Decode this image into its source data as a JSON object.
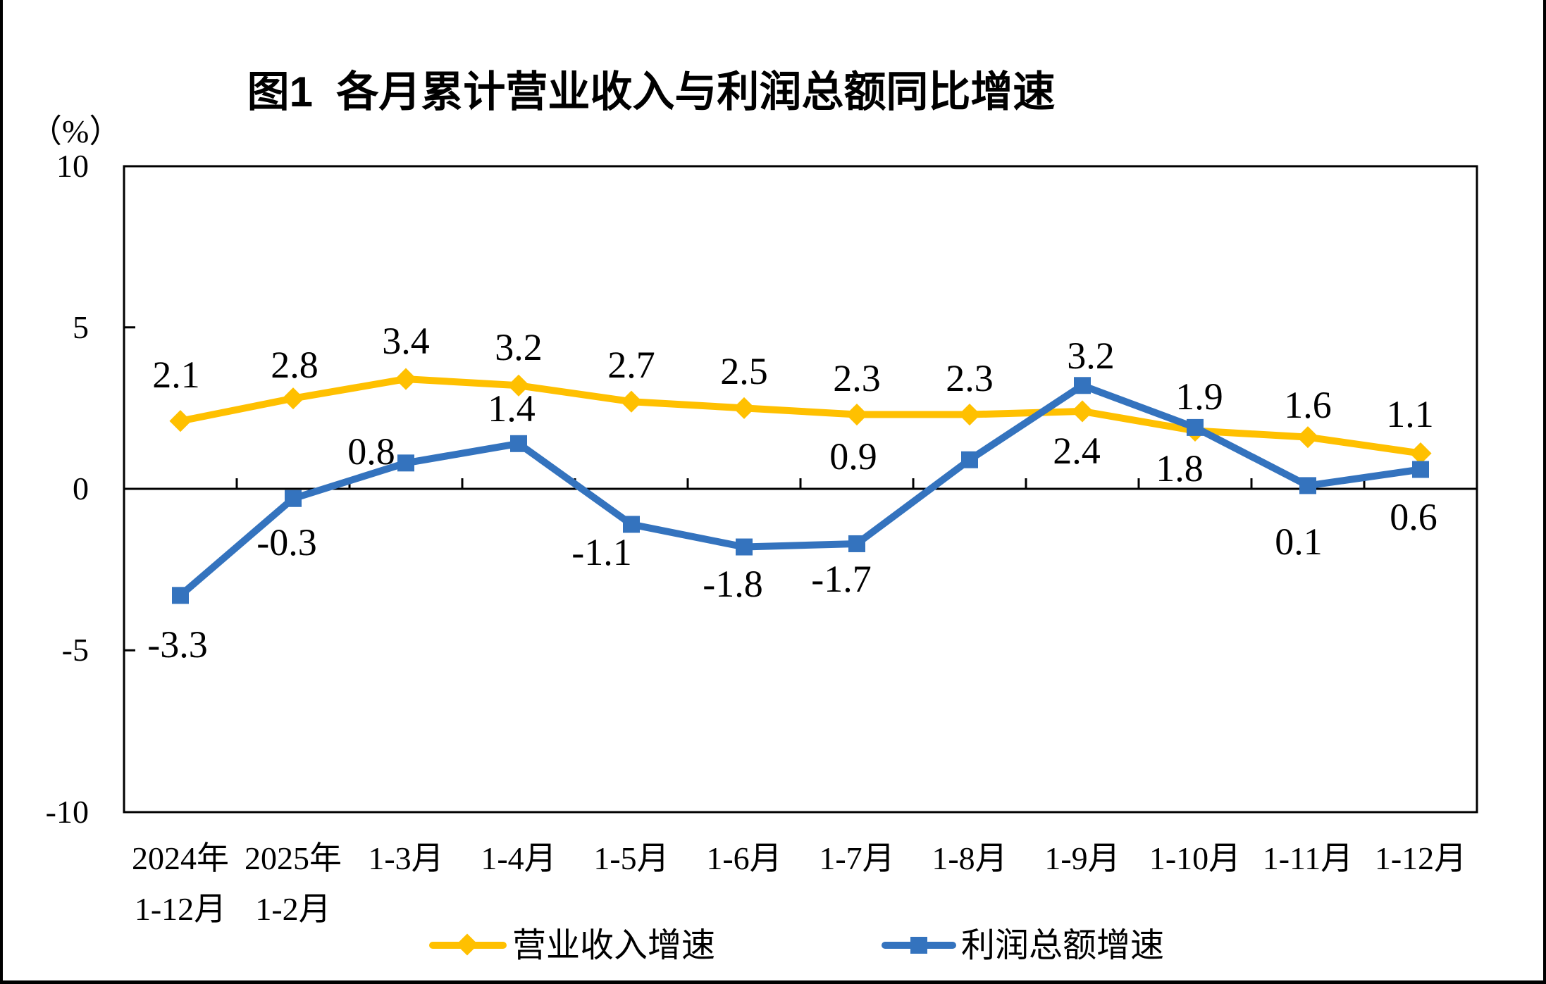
{
  "title": "图1  各月累计营业收入与利润总额同比增速",
  "y_axis": {
    "unit_label": "（%）",
    "tick_labels": [
      "10",
      "5",
      "0",
      "-5",
      "-10"
    ],
    "tick_values": [
      10,
      5,
      0,
      -5,
      -10
    ],
    "min": -10,
    "max": 10
  },
  "x_axis": {
    "category_labels": [
      [
        "2024年",
        "1-12月"
      ],
      [
        "2025年",
        "1-2月"
      ],
      [
        "1-3月"
      ],
      [
        "1-4月"
      ],
      [
        "1-5月"
      ],
      [
        "1-6月"
      ],
      [
        "1-7月"
      ],
      [
        "1-8月"
      ],
      [
        "1-9月"
      ],
      [
        "1-10月"
      ],
      [
        "1-11月"
      ],
      [
        "1-12月"
      ]
    ]
  },
  "legend": {
    "items": [
      {
        "label": "营业收入增速",
        "marker": "diamond",
        "color": "#FFC000"
      },
      {
        "label": "利润总额增速",
        "marker": "square",
        "color": "#3473BE"
      }
    ]
  },
  "colors": {
    "revenue_series": "#FFC000",
    "profit_series": "#3473BE",
    "axis": "#000000",
    "background": "#FFFFFF"
  },
  "chart_data": {
    "type": "line",
    "title": "图1  各月累计营业收入与利润总额同比增速",
    "categories": [
      "2024年1-12月",
      "2025年1-2月",
      "1-3月",
      "1-4月",
      "1-5月",
      "1-6月",
      "1-7月",
      "1-8月",
      "1-9月",
      "1-10月",
      "1-11月",
      "1-12月"
    ],
    "ylabel": "（%）",
    "ylim": [
      -10,
      10
    ],
    "y_tick_step": 5,
    "grid": false,
    "legend_position": "bottom",
    "series": [
      {
        "name": "营业收入增速",
        "color": "#FFC000",
        "marker": "diamond",
        "values": [
          2.1,
          2.8,
          3.4,
          3.2,
          2.7,
          2.5,
          2.3,
          2.3,
          2.4,
          1.8,
          1.6,
          1.1
        ],
        "point_labels": [
          "2.1",
          "2.8",
          "3.4",
          "3.2",
          "2.7",
          "2.5",
          "2.3",
          "2.3",
          "2.4",
          "1.8",
          "1.6",
          "1.1"
        ],
        "label_offsets": [
          [
            -6,
            -66
          ],
          [
            2,
            -48
          ],
          [
            0,
            -54
          ],
          [
            0,
            -54
          ],
          [
            0,
            -52
          ],
          [
            0,
            -52
          ],
          [
            0,
            -52
          ],
          [
            0,
            -52
          ],
          [
            -8,
            56
          ],
          [
            -22,
            54
          ],
          [
            0,
            -46
          ],
          [
            -15,
            -56
          ]
        ]
      },
      {
        "name": "利润总额增速",
        "color": "#3473BE",
        "marker": "square",
        "values": [
          -3.3,
          -0.3,
          0.8,
          1.4,
          -1.1,
          -1.8,
          -1.7,
          0.9,
          3.2,
          1.9,
          0.1,
          0.6
        ],
        "point_labels": [
          "-3.3",
          "-0.3",
          "0.8",
          "1.4",
          "-1.1",
          "-1.8",
          "-1.7",
          "0.9",
          "3.2",
          "1.9",
          "0.1",
          "0.6"
        ],
        "label_offsets": [
          [
            -4,
            70
          ],
          [
            -9,
            62
          ],
          [
            -49,
            -16
          ],
          [
            -10,
            -50
          ],
          [
            -42,
            40
          ],
          [
            -16,
            52
          ],
          [
            -22,
            50
          ],
          [
            -165,
            -5
          ],
          [
            12,
            -42
          ],
          [
            6,
            -44
          ],
          [
            -13,
            80
          ],
          [
            -10,
            68
          ]
        ]
      }
    ]
  }
}
